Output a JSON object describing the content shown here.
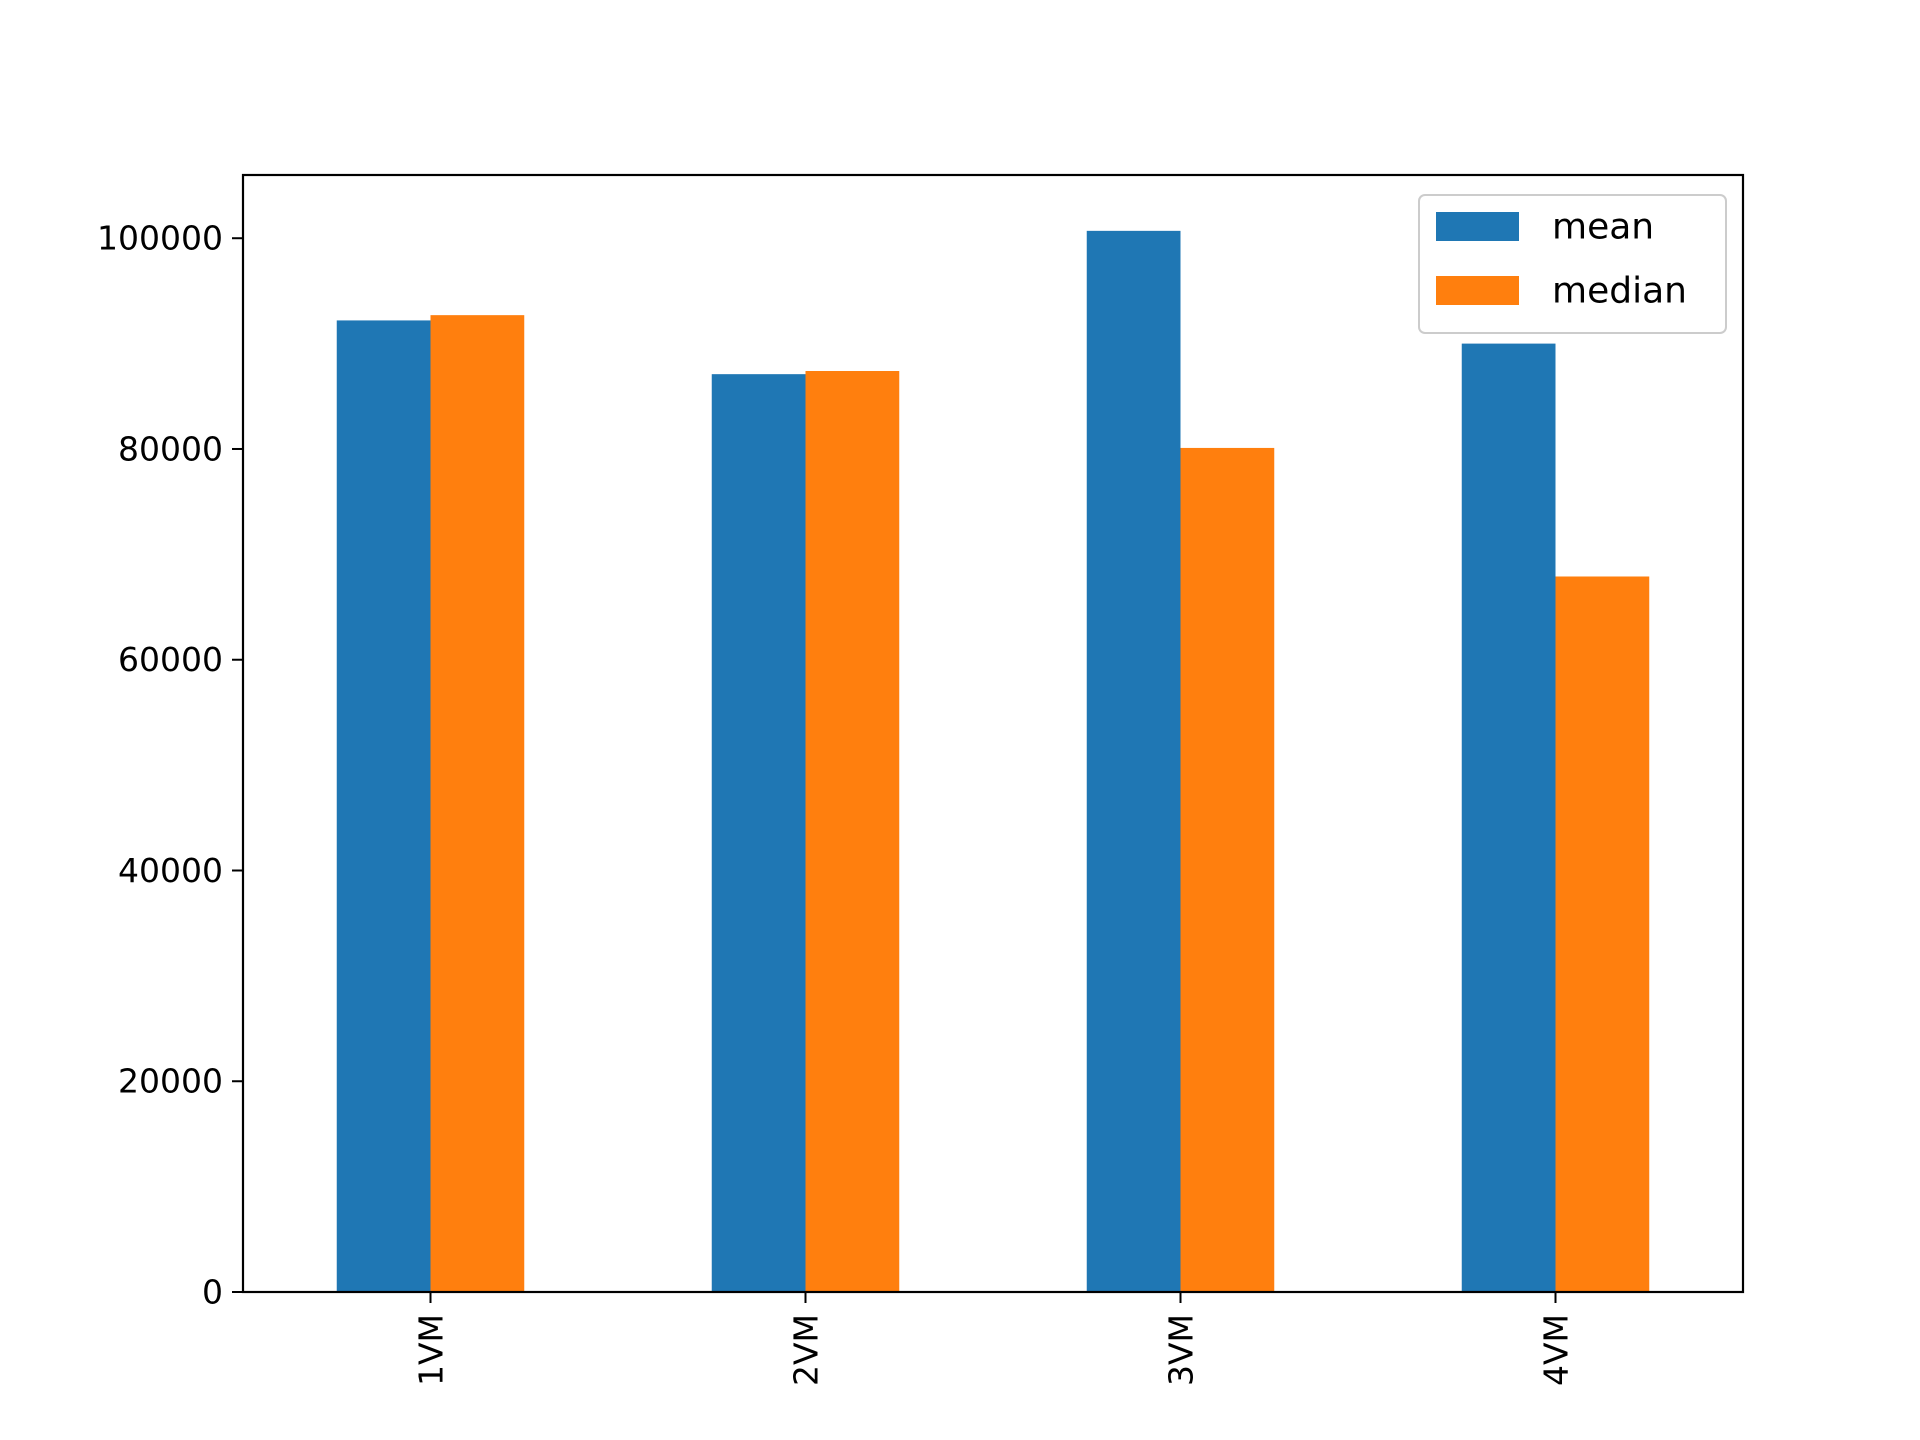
{
  "chart_data": {
    "type": "bar",
    "title": "",
    "xlabel": "",
    "ylabel": "",
    "categories": [
      "1VM",
      "2VM",
      "3VM",
      "4VM"
    ],
    "series": [
      {
        "name": "mean",
        "color": "#1f77b4",
        "values": [
          92200,
          87100,
          100700,
          90000
        ]
      },
      {
        "name": "median",
        "color": "#ff7f0e",
        "values": [
          92700,
          87400,
          80100,
          67900
        ]
      }
    ],
    "ylim": [
      0,
      106000
    ],
    "yticks": [
      0,
      20000,
      40000,
      60000,
      80000,
      100000
    ],
    "ytick_labels": [
      "0",
      "20000",
      "40000",
      "60000",
      "80000",
      "100000"
    ],
    "grid": false,
    "legend_position": "top-right",
    "xtick_rotation": "vertical"
  }
}
